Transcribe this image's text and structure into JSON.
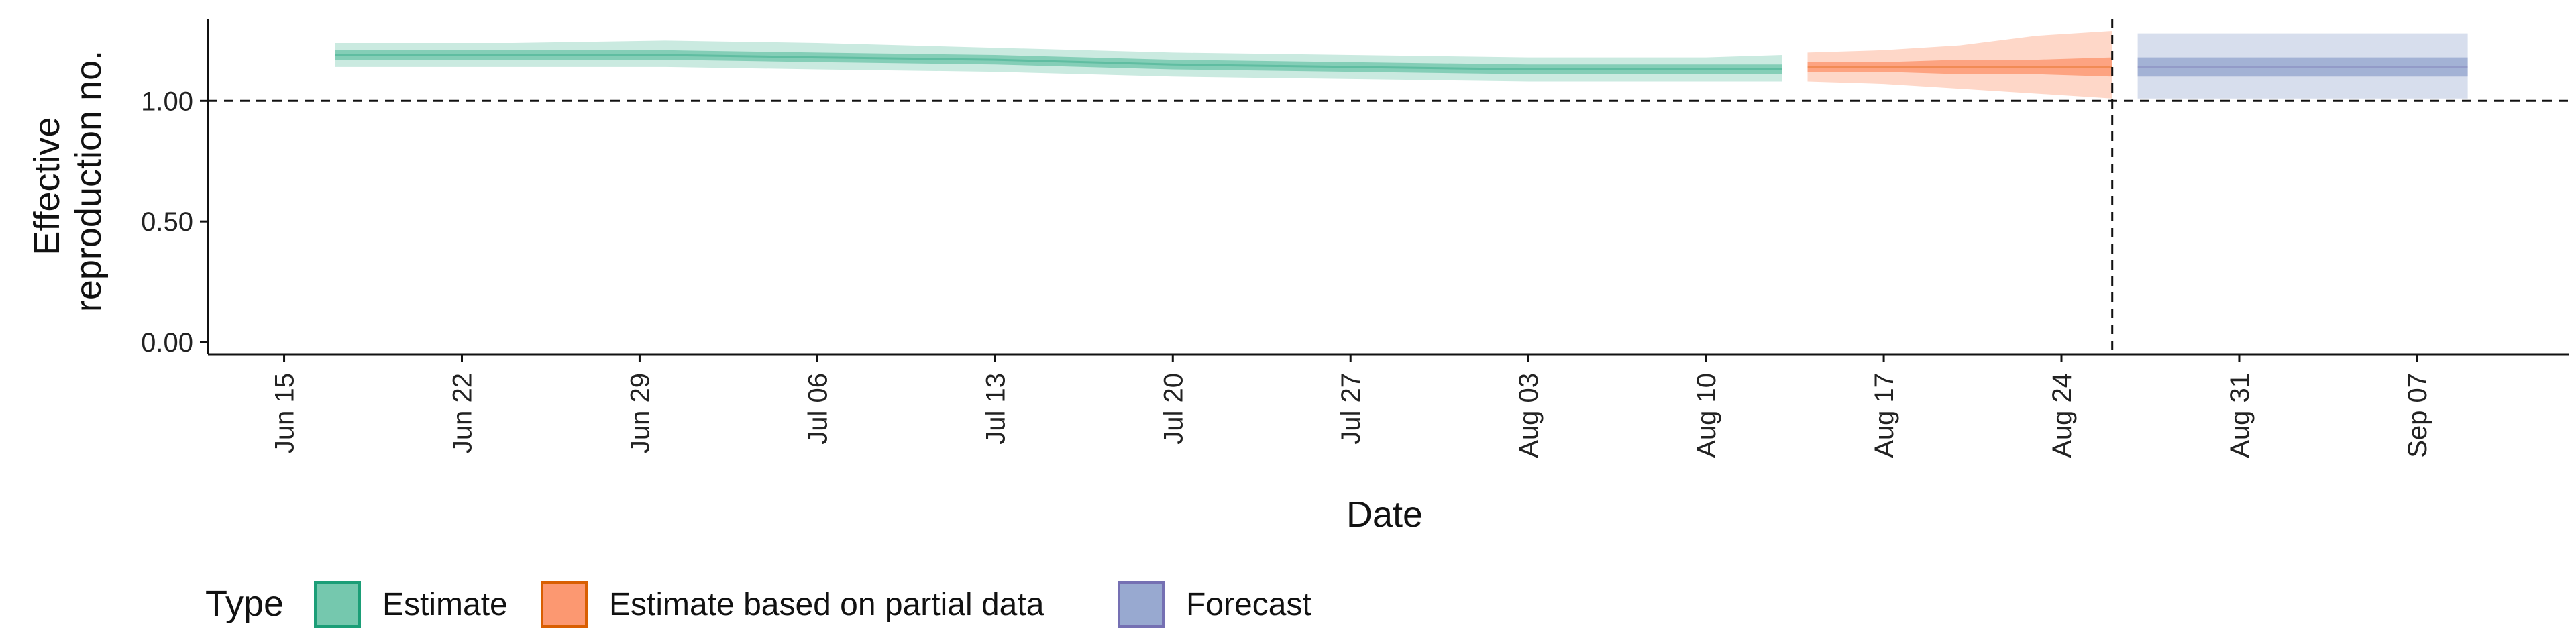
{
  "chart_data": {
    "type": "area",
    "xlabel": "Date",
    "ylabel": "Effective reproduction no.",
    "ylabel_lines": [
      "Effective",
      "reproduction no."
    ],
    "x_range": [
      "2020-06-12",
      "2020-09-13"
    ],
    "ylim": [
      0,
      1.34
    ],
    "x_ticks": [
      {
        "date": "2020-06-15",
        "label": "Jun 15"
      },
      {
        "date": "2020-06-22",
        "label": "Jun 22"
      },
      {
        "date": "2020-06-29",
        "label": "Jun 29"
      },
      {
        "date": "2020-07-06",
        "label": "Jul 06"
      },
      {
        "date": "2020-07-13",
        "label": "Jul 13"
      },
      {
        "date": "2020-07-20",
        "label": "Jul 20"
      },
      {
        "date": "2020-07-27",
        "label": "Jul 27"
      },
      {
        "date": "2020-08-03",
        "label": "Aug 03"
      },
      {
        "date": "2020-08-10",
        "label": "Aug 10"
      },
      {
        "date": "2020-08-17",
        "label": "Aug 17"
      },
      {
        "date": "2020-08-24",
        "label": "Aug 24"
      },
      {
        "date": "2020-08-31",
        "label": "Aug 31"
      },
      {
        "date": "2020-09-07",
        "label": "Sep 07"
      }
    ],
    "y_ticks": [
      {
        "value": 0,
        "label": "0.00"
      },
      {
        "value": 0.5,
        "label": "0.50"
      },
      {
        "value": 1,
        "label": "1.00"
      }
    ],
    "reference_lines": {
      "y": 1.0,
      "x": "2020-08-26"
    },
    "grid": false,
    "legend_position": "bottom-left",
    "legend_title": "Type",
    "series": [
      {
        "name": "Estimate",
        "color": "#1b9e77",
        "fill": "#66c2a5",
        "points": [
          {
            "x": "2020-06-17",
            "median": 1.19,
            "lo50": 1.17,
            "hi50": 1.21,
            "lo90": 1.14,
            "hi90": 1.24
          },
          {
            "x": "2020-06-24",
            "median": 1.19,
            "lo50": 1.17,
            "hi50": 1.21,
            "lo90": 1.14,
            "hi90": 1.24
          },
          {
            "x": "2020-06-30",
            "median": 1.19,
            "lo50": 1.17,
            "hi50": 1.21,
            "lo90": 1.14,
            "hi90": 1.25
          },
          {
            "x": "2020-07-06",
            "median": 1.18,
            "lo50": 1.16,
            "hi50": 1.2,
            "lo90": 1.13,
            "hi90": 1.24
          },
          {
            "x": "2020-07-13",
            "median": 1.17,
            "lo50": 1.15,
            "hi50": 1.19,
            "lo90": 1.12,
            "hi90": 1.22
          },
          {
            "x": "2020-07-20",
            "median": 1.15,
            "lo50": 1.13,
            "hi50": 1.17,
            "lo90": 1.1,
            "hi90": 1.2
          },
          {
            "x": "2020-07-27",
            "median": 1.14,
            "lo50": 1.12,
            "hi50": 1.16,
            "lo90": 1.09,
            "hi90": 1.19
          },
          {
            "x": "2020-08-03",
            "median": 1.13,
            "lo50": 1.11,
            "hi50": 1.15,
            "lo90": 1.08,
            "hi90": 1.18
          },
          {
            "x": "2020-08-10",
            "median": 1.13,
            "lo50": 1.11,
            "hi50": 1.15,
            "lo90": 1.08,
            "hi90": 1.18
          },
          {
            "x": "2020-08-13",
            "median": 1.13,
            "lo50": 1.11,
            "hi50": 1.15,
            "lo90": 1.08,
            "hi90": 1.19
          }
        ]
      },
      {
        "name": "Estimate based on partial data",
        "color": "#d95f02",
        "fill": "#fc8d62",
        "points": [
          {
            "x": "2020-08-14",
            "median": 1.14,
            "lo50": 1.12,
            "hi50": 1.16,
            "lo90": 1.08,
            "hi90": 1.2
          },
          {
            "x": "2020-08-17",
            "median": 1.14,
            "lo50": 1.12,
            "hi50": 1.16,
            "lo90": 1.07,
            "hi90": 1.21
          },
          {
            "x": "2020-08-20",
            "median": 1.14,
            "lo50": 1.11,
            "hi50": 1.17,
            "lo90": 1.05,
            "hi90": 1.23
          },
          {
            "x": "2020-08-23",
            "median": 1.14,
            "lo50": 1.11,
            "hi50": 1.17,
            "lo90": 1.03,
            "hi90": 1.27
          },
          {
            "x": "2020-08-26",
            "median": 1.14,
            "lo50": 1.1,
            "hi50": 1.18,
            "lo90": 1.01,
            "hi90": 1.29
          }
        ]
      },
      {
        "name": "Forecast",
        "color": "#7570b3",
        "fill": "#8da0cb",
        "points": [
          {
            "x": "2020-08-27",
            "median": 1.14,
            "lo50": 1.1,
            "hi50": 1.18,
            "lo90": 1.01,
            "hi90": 1.28
          },
          {
            "x": "2020-09-09",
            "median": 1.14,
            "lo50": 1.1,
            "hi50": 1.18,
            "lo90": 1.01,
            "hi90": 1.28
          }
        ]
      }
    ]
  }
}
